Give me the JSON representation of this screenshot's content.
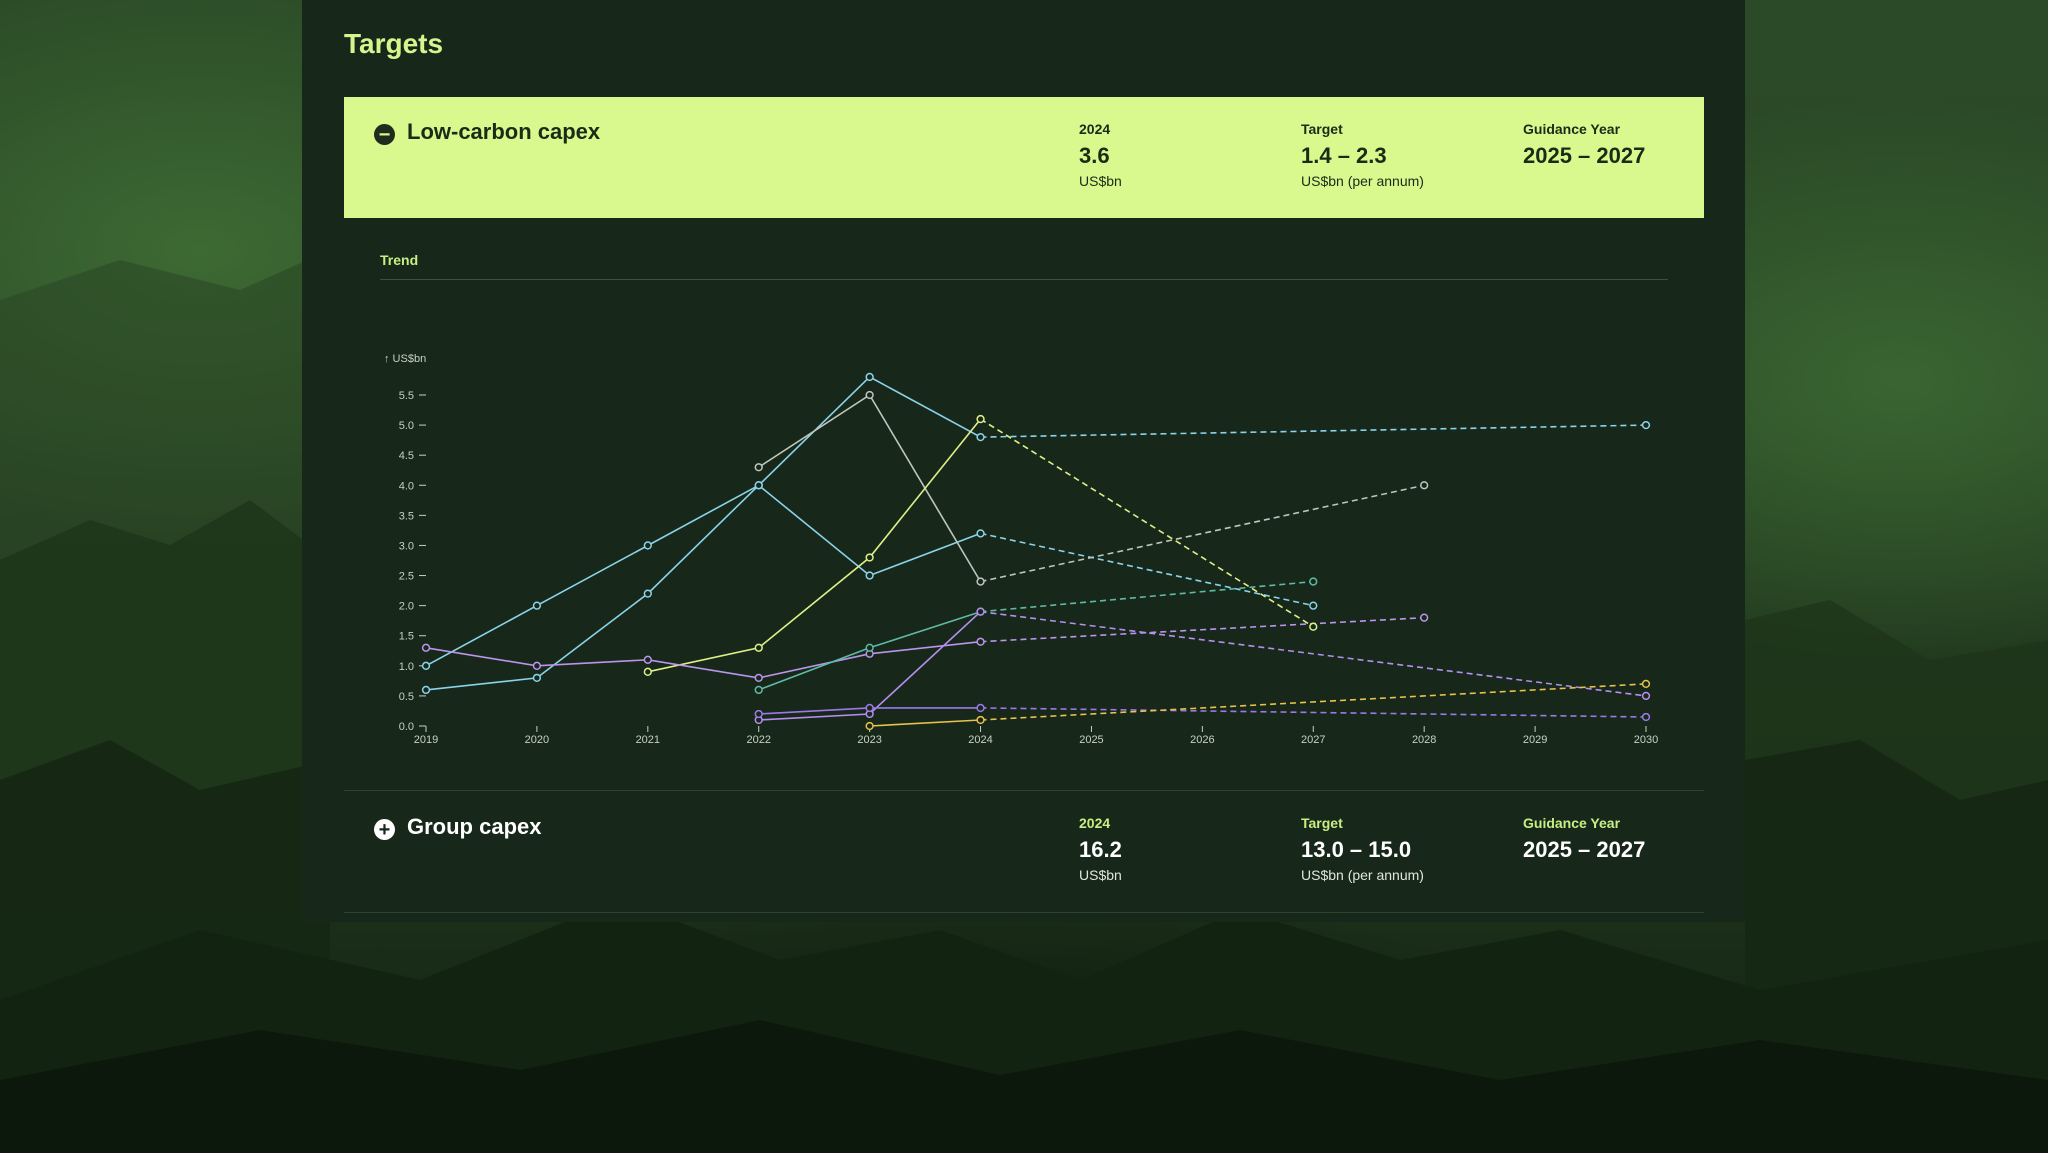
{
  "page": {
    "title": "Targets"
  },
  "colors": {
    "panel": "#17281a",
    "accent": "#d9f98f",
    "label_green": "#c9ee83"
  },
  "cards": [
    {
      "name": "Low-carbon capex",
      "icon": "minus-circle-icon",
      "expanded": true,
      "year_label": "2024",
      "year_value": "3.6",
      "year_unit": "US$bn",
      "target_label": "Target",
      "target_value": "1.4 – 2.3",
      "target_unit": "US$bn (per annum)",
      "guidance_label": "Guidance Year",
      "guidance_value": "2025 – 2027"
    },
    {
      "name": "Group capex",
      "icon": "plus-circle-icon",
      "expanded": false,
      "year_label": "2024",
      "year_value": "16.2",
      "year_unit": "US$bn",
      "target_label": "Target",
      "target_value": "13.0 – 15.0",
      "target_unit": "US$bn (per annum)",
      "guidance_label": "Guidance Year",
      "guidance_value": "2025 – 2027"
    }
  ],
  "trend": {
    "label": "Trend"
  },
  "chart_data": {
    "type": "line",
    "ylabel": "↑ US$bn",
    "xlabel": "",
    "xlim": [
      2019,
      2030
    ],
    "ylim": [
      0,
      5.5
    ],
    "x_ticks": [
      2019,
      2020,
      2021,
      2022,
      2023,
      2024,
      2025,
      2026,
      2027,
      2028,
      2029,
      2030
    ],
    "y_ticks": [
      "0.0",
      "0.5",
      "1.0",
      "1.5",
      "2.0",
      "2.5",
      "3.0",
      "3.5",
      "4.0",
      "4.5",
      "5.0",
      "5.5"
    ],
    "grid": false,
    "series": [
      {
        "color": "#8ad3ea",
        "actual": [
          [
            2019,
            1.0
          ],
          [
            2020,
            2.0
          ],
          [
            2021,
            3.0
          ],
          [
            2022,
            4.0
          ],
          [
            2023,
            2.5
          ],
          [
            2024,
            3.2
          ]
        ],
        "projected": [
          [
            2024,
            3.2
          ],
          [
            2027,
            2.0
          ]
        ]
      },
      {
        "color": "#8ad3ea",
        "actual": [
          [
            2019,
            0.6
          ],
          [
            2020,
            0.8
          ],
          [
            2021,
            2.2
          ],
          [
            2022,
            4.0
          ],
          [
            2023,
            5.8
          ],
          [
            2024,
            4.8
          ]
        ],
        "projected": [
          [
            2024,
            4.8
          ],
          [
            2030,
            5.0
          ]
        ]
      },
      {
        "color": "#bfc6bd",
        "actual": [
          [
            2022,
            4.3
          ],
          [
            2023,
            5.5
          ],
          [
            2024,
            2.4
          ]
        ],
        "projected": [
          [
            2024,
            2.4
          ],
          [
            2028,
            4.0
          ]
        ]
      },
      {
        "color": "#dff08a",
        "actual": [
          [
            2021,
            0.9
          ],
          [
            2022,
            1.3
          ],
          [
            2023,
            2.8
          ],
          [
            2024,
            5.1
          ]
        ],
        "projected": [
          [
            2024,
            5.1
          ],
          [
            2027,
            1.65
          ]
        ]
      },
      {
        "color": "#bb94ec",
        "actual": [
          [
            2019,
            1.3
          ],
          [
            2020,
            1.0
          ],
          [
            2021,
            1.1
          ],
          [
            2022,
            0.8
          ],
          [
            2023,
            1.2
          ],
          [
            2024,
            1.4
          ]
        ],
        "projected": [
          [
            2024,
            1.4
          ],
          [
            2028,
            1.8
          ]
        ]
      },
      {
        "color": "#5fb9a6",
        "actual": [
          [
            2022,
            0.6
          ],
          [
            2023,
            1.3
          ],
          [
            2024,
            1.9
          ]
        ],
        "projected": [
          [
            2024,
            1.9
          ],
          [
            2027,
            2.4
          ]
        ]
      },
      {
        "color": "#b58ef0",
        "actual": [
          [
            2022,
            0.1
          ],
          [
            2023,
            0.2
          ],
          [
            2024,
            1.9
          ]
        ],
        "projected": [
          [
            2024,
            1.9
          ],
          [
            2030,
            0.5
          ]
        ]
      },
      {
        "color": "#9a7ae8",
        "actual": [
          [
            2022,
            0.2
          ],
          [
            2023,
            0.3
          ],
          [
            2024,
            0.3
          ]
        ],
        "projected": [
          [
            2024,
            0.3
          ],
          [
            2030,
            0.15
          ]
        ]
      },
      {
        "color": "#e8c24a",
        "actual": [
          [
            2023,
            0.0
          ],
          [
            2024,
            0.1
          ]
        ],
        "projected": [
          [
            2024,
            0.1
          ],
          [
            2030,
            0.7
          ]
        ]
      }
    ]
  }
}
